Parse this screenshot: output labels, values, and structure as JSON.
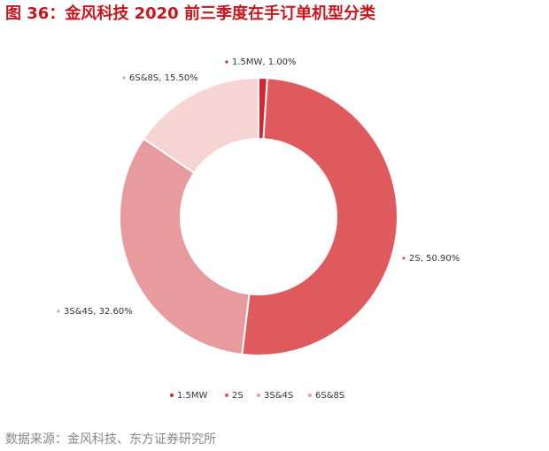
{
  "chart_data": {
    "type": "pie",
    "donut": true,
    "title": "图 36：金风科技 2020 前三季度在手订单机型分类",
    "categories": [
      "1.5MW",
      "2S",
      "3S&4S",
      "6S&8S"
    ],
    "values": [
      1.0,
      50.9,
      32.6,
      15.5
    ],
    "value_labels": [
      "1.00%",
      "50.90%",
      "32.60%",
      "15.50%"
    ],
    "label_separator": ", ",
    "colors": [
      "#d7262d",
      "#de5a5d",
      "#e89b9d",
      "#f6d4d4"
    ],
    "legend": "bottom",
    "source": "数据来源：金风科技、东方证券研究所"
  }
}
